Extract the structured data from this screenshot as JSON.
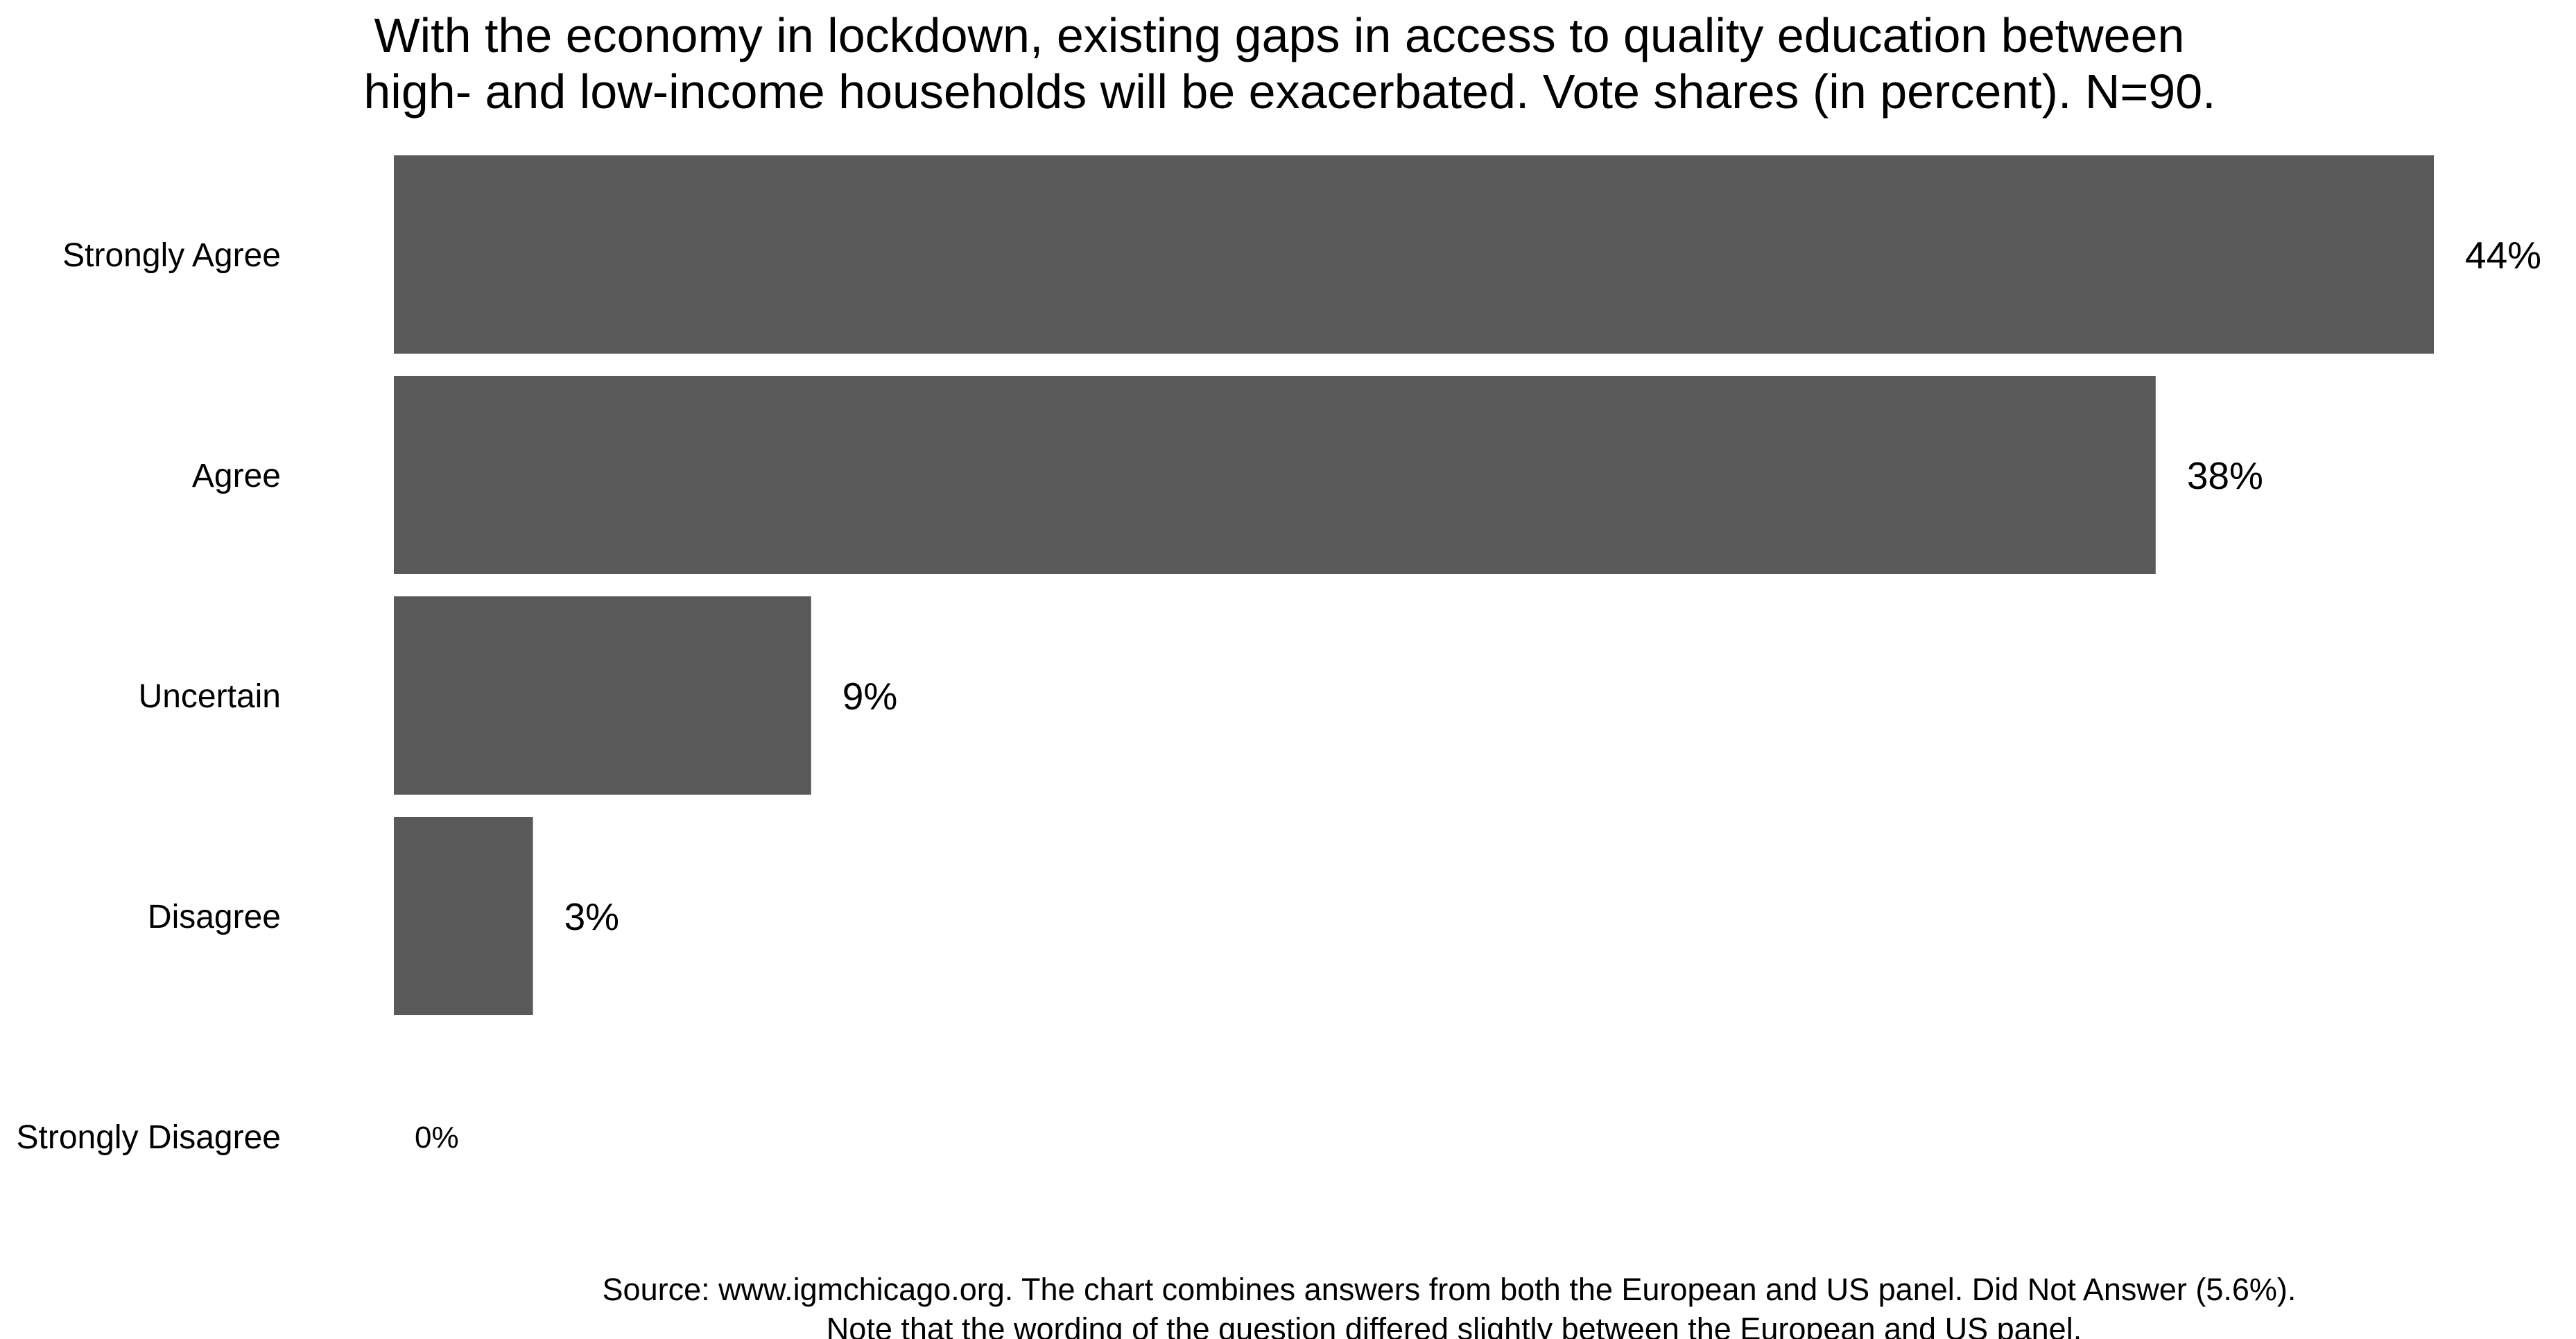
{
  "chart_data": {
    "type": "bar",
    "orientation": "horizontal",
    "title_lines": [
      "With the economy in lockdown, existing gaps in access to quality education between",
      "high- and low-income households will be exacerbated. Vote shares (in percent). N=90."
    ],
    "categories": [
      "Strongly Agree",
      "Agree",
      "Uncertain",
      "Disagree",
      "Strongly Disagree"
    ],
    "values": [
      44,
      38,
      9,
      3,
      0
    ],
    "data_labels": [
      "44%",
      "38%",
      "9%",
      "3%",
      "0%"
    ],
    "unit": "%",
    "xlim": [
      0,
      44
    ],
    "xlabel": "",
    "ylabel": "",
    "grid": false,
    "legend": "none",
    "bar_color": "#595959",
    "caption_lines": [
      "Source: www.igmchicago.org. The chart combines answers from both the European and US panel. Did Not Answer (5.6%).",
      "Note that the wording of the question differed slightly between the European and US panel."
    ]
  }
}
